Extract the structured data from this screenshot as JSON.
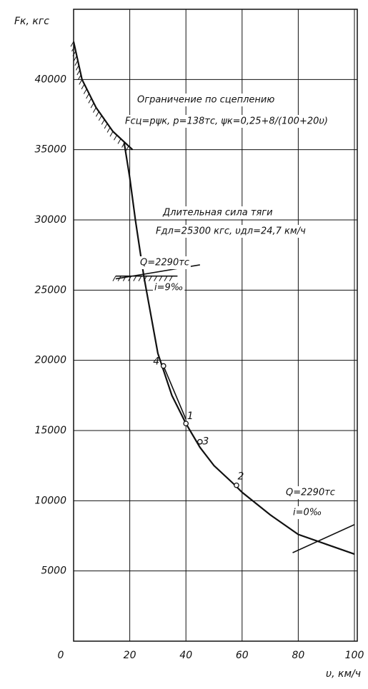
{
  "chart_data": {
    "type": "line",
    "y_label": "Fк, кгс",
    "x_label": "υ, км/ч",
    "xlim": [
      0,
      100
    ],
    "xticks": [
      0,
      20,
      40,
      60,
      80,
      100
    ],
    "ylim": [
      0,
      45000
    ],
    "yticks": [
      5000,
      10000,
      15000,
      20000,
      25000,
      30000,
      35000,
      40000
    ],
    "grid": true,
    "color": "#111",
    "series": [
      {
        "x": [
          18,
          20,
          22,
          25,
          30,
          35,
          40,
          45,
          50,
          57,
          60,
          70,
          80,
          90,
          100
        ],
        "values": [
          35500,
          33000,
          30000,
          26000,
          20500,
          17500,
          15500,
          13800,
          12500,
          11200,
          10600,
          9000,
          7600,
          6900,
          6200
        ]
      },
      {
        "x": [
          0,
          3,
          8,
          14,
          21
        ],
        "values": [
          42700,
          40000,
          38000,
          36300,
          35000
        ]
      },
      {
        "x": [
          32,
          40
        ],
        "values": [
          19600,
          15800
        ]
      },
      {
        "x": [
          15,
          45
        ],
        "values": [
          25800,
          26800
        ]
      },
      {
        "x": [
          15,
          37
        ],
        "values": [
          26000,
          26000
        ]
      },
      {
        "x": [
          78,
          100
        ],
        "values": [
          6300,
          8300
        ]
      }
    ],
    "points": [
      {
        "label": "1",
        "x": 40,
        "y": 15500
      },
      {
        "label": "2",
        "x": 58,
        "y": 11100
      },
      {
        "label": "3",
        "x": 45,
        "y": 14200
      },
      {
        "label": "4",
        "x": 32,
        "y": 19600
      }
    ],
    "annotations": [
      "Ограничение по сцеплению",
      "Fсц=pψк, p=138тс, ψк=0,25+8/(100+20υ)",
      "Длительная сила тяги",
      "Fдл=25300 кгс, υдл=24,7 км/ч",
      "Q=2290тс",
      "i=9‰",
      "Q=2290тс",
      "i=0‰"
    ]
  }
}
